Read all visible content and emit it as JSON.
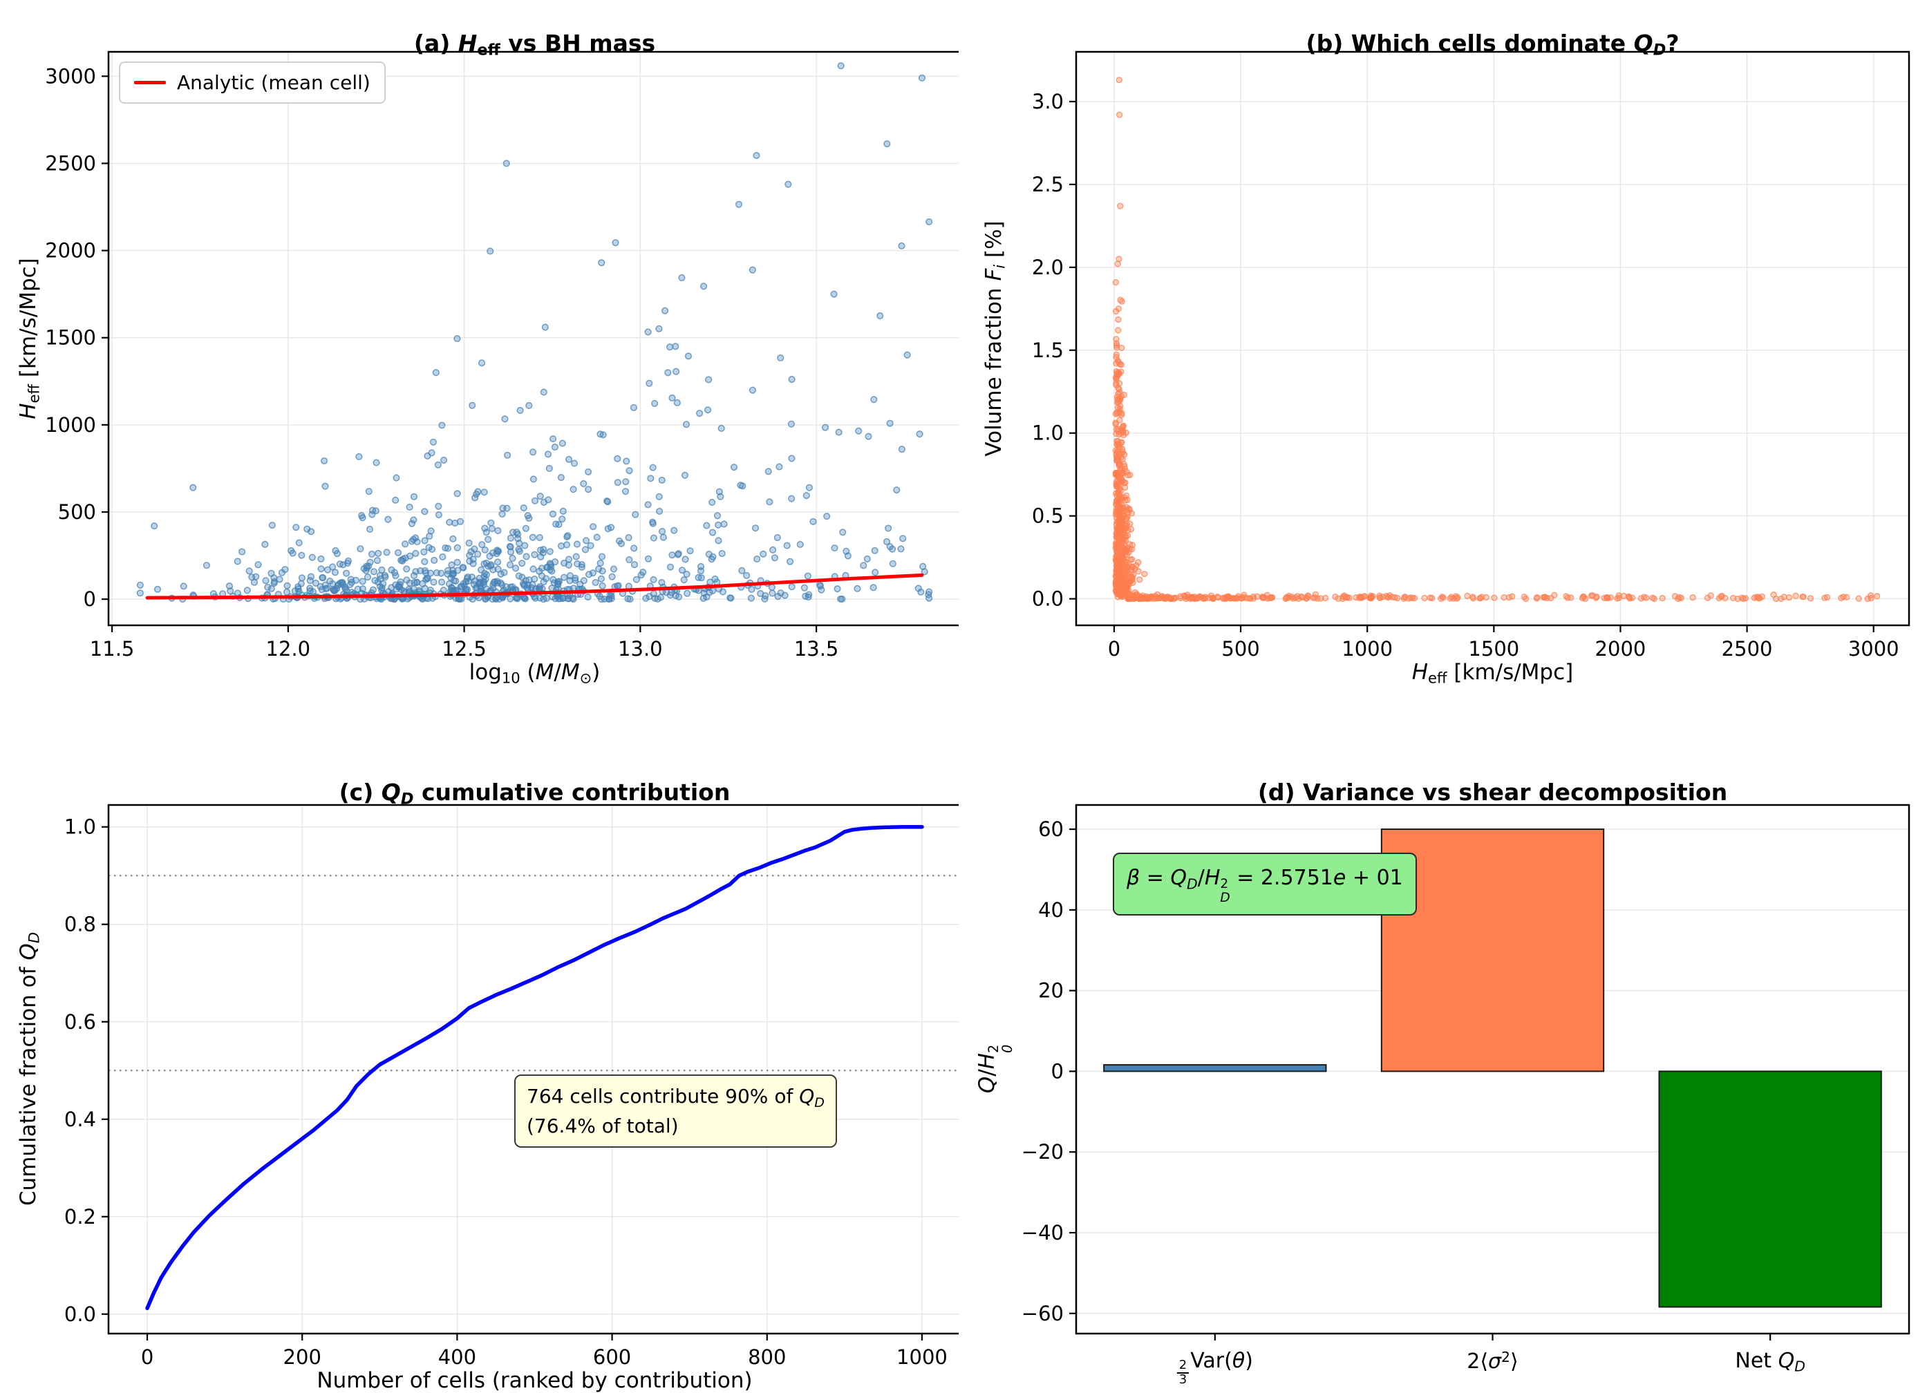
{
  "figure": {
    "background": "#ffffff"
  },
  "chart_data": [
    {
      "id": "a",
      "type": "scatter",
      "title": [
        {
          "t": "(a) ",
          "s": "n"
        },
        {
          "t": "H",
          "s": "i"
        },
        {
          "t": "eff",
          "s": "sub"
        },
        {
          "t": " vs BH mass",
          "s": "n"
        }
      ],
      "xlabel": [
        {
          "t": "log",
          "s": "n"
        },
        {
          "t": "10",
          "s": "sub"
        },
        {
          "t": " (",
          "s": "n"
        },
        {
          "t": "M",
          "s": "i"
        },
        {
          "t": "/",
          "s": "n"
        },
        {
          "t": "M",
          "s": "i"
        },
        {
          "t": "⊙",
          "s": "sub"
        },
        {
          "t": ")",
          "s": "n"
        }
      ],
      "ylabel": [
        {
          "t": "H",
          "s": "i"
        },
        {
          "t": "eff",
          "s": "sub"
        },
        {
          "t": " [km/s/Mpc]",
          "s": "n"
        }
      ],
      "xlim": [
        11.49,
        13.91
      ],
      "ylim": [
        -150,
        3140
      ],
      "xticks": [
        11.5,
        12.0,
        12.5,
        13.0,
        13.5
      ],
      "xtick_labels": [
        "11.5",
        "12.0",
        "12.5",
        "13.0",
        "13.5"
      ],
      "yticks": [
        0,
        500,
        1000,
        1500,
        2000,
        2500,
        3000
      ],
      "ytick_labels": [
        "0",
        "500",
        "1000",
        "1500",
        "2000",
        "2500",
        "3000"
      ],
      "grid": "both",
      "legend": {
        "label": "Analytic (mean cell)",
        "color": "#ff0000"
      },
      "scatter": {
        "color": "#4682b4",
        "seed": 42,
        "n": 900,
        "model": "bhmass",
        "radius": 4.3
      },
      "extra_points": [
        [
          13.8,
          2990
        ],
        [
          12.62,
          2500
        ],
        [
          13.33,
          2545
        ],
        [
          13.42,
          2380
        ],
        [
          13.28,
          2265
        ],
        [
          12.89,
          1930
        ],
        [
          13.18,
          1795
        ],
        [
          13.55,
          1750
        ],
        [
          13.07,
          1655
        ],
        [
          12.73,
          1560
        ],
        [
          12.48,
          1495
        ],
        [
          13.1,
          1450
        ],
        [
          12.55,
          1355
        ],
        [
          12.42,
          1300
        ],
        [
          13.62,
          965
        ],
        [
          11.73,
          640
        ],
        [
          11.62,
          420
        ],
        [
          13.48,
          640
        ],
        [
          13.7,
          330
        ]
      ],
      "analytic_line": {
        "color": "#ff0000",
        "points": [
          [
            11.6,
            8
          ],
          [
            11.8,
            10
          ],
          [
            12.0,
            13
          ],
          [
            12.2,
            17
          ],
          [
            12.4,
            23
          ],
          [
            12.6,
            31
          ],
          [
            12.8,
            41
          ],
          [
            13.0,
            55
          ],
          [
            13.2,
            73
          ],
          [
            13.4,
            96
          ],
          [
            13.6,
            118
          ],
          [
            13.8,
            138
          ]
        ]
      }
    },
    {
      "id": "b",
      "type": "scatter",
      "title": [
        {
          "t": "(b) Which cells dominate ",
          "s": "n"
        },
        {
          "t": "Q",
          "s": "i"
        },
        {
          "t": "D",
          "s": "isub"
        },
        {
          "t": "?",
          "s": "n"
        }
      ],
      "xlabel": [
        {
          "t": "H",
          "s": "i"
        },
        {
          "t": "eff",
          "s": "sub"
        },
        {
          "t": " [km/s/Mpc]",
          "s": "n"
        }
      ],
      "ylabel": [
        {
          "t": "Volume fraction ",
          "s": "n"
        },
        {
          "t": "F",
          "s": "i"
        },
        {
          "t": "i",
          "s": "isub"
        },
        {
          "t": " [%]",
          "s": "n"
        }
      ],
      "xlim": [
        -150,
        3140
      ],
      "ylim": [
        -0.16,
        3.3
      ],
      "xticks": [
        0,
        500,
        1000,
        1500,
        2000,
        2500,
        3000
      ],
      "xtick_labels": [
        "0",
        "500",
        "1000",
        "1500",
        "2000",
        "2500",
        "3000"
      ],
      "yticks": [
        0.0,
        0.5,
        1.0,
        1.5,
        2.0,
        2.5,
        3.0
      ],
      "ytick_labels": [
        "0.0",
        "0.5",
        "1.0",
        "1.5",
        "2.0",
        "2.5",
        "3.0"
      ],
      "grid": "both",
      "scatter": {
        "color": "#ff7f50",
        "seed": 7,
        "n": 880,
        "model": "volfrac",
        "radius": 3.9
      },
      "extra_points": [
        [
          20,
          3.13
        ],
        [
          21,
          2.92
        ],
        [
          24,
          2.37
        ],
        [
          19,
          2.05
        ],
        [
          16,
          1.62
        ],
        [
          27,
          1.37
        ],
        [
          14,
          1.2
        ],
        [
          30,
          1.12
        ],
        [
          36,
          1.04
        ],
        [
          12,
          0.93
        ],
        [
          44,
          0.7
        ],
        [
          55,
          0.52
        ],
        [
          70,
          0.3
        ],
        [
          95,
          0.22
        ],
        [
          120,
          0.15
        ],
        [
          1540,
          0.008
        ],
        [
          1620,
          0.012
        ],
        [
          1700,
          0.01
        ],
        [
          1850,
          0.005
        ],
        [
          1950,
          0.004
        ],
        [
          2240,
          0.005
        ],
        [
          2390,
          0.004
        ],
        [
          2480,
          0.006
        ],
        [
          2550,
          0.004
        ],
        [
          2990,
          0.004
        ]
      ]
    },
    {
      "id": "c",
      "type": "line",
      "title": [
        {
          "t": "(c) ",
          "s": "n"
        },
        {
          "t": "Q",
          "s": "i"
        },
        {
          "t": "D",
          "s": "isub"
        },
        {
          "t": " cumulative contribution",
          "s": "n"
        }
      ],
      "xlabel": [
        {
          "t": "Number of cells (ranked by contribution)",
          "s": "n"
        }
      ],
      "ylabel": [
        {
          "t": "Cumulative fraction of ",
          "s": "n"
        },
        {
          "t": "Q",
          "s": "i"
        },
        {
          "t": "D",
          "s": "isub"
        }
      ],
      "xlim": [
        -50,
        1050
      ],
      "ylim": [
        -0.04,
        1.045
      ],
      "xticks": [
        0,
        200,
        400,
        600,
        800,
        1000
      ],
      "xtick_labels": [
        "0",
        "200",
        "400",
        "600",
        "800",
        "1000"
      ],
      "yticks": [
        0.0,
        0.2,
        0.4,
        0.6,
        0.8,
        1.0
      ],
      "ytick_labels": [
        "0.0",
        "0.2",
        "0.4",
        "0.6",
        "0.8",
        "1.0"
      ],
      "grid": "both",
      "line_color": "#0000ff",
      "hlines": {
        "values": [
          0.5,
          0.9
        ],
        "color": "#808080",
        "style": "dotted"
      },
      "curve_points": [
        [
          0,
          0.012
        ],
        [
          8,
          0.042
        ],
        [
          18,
          0.075
        ],
        [
          30,
          0.105
        ],
        [
          45,
          0.138
        ],
        [
          60,
          0.168
        ],
        [
          80,
          0.202
        ],
        [
          100,
          0.232
        ],
        [
          125,
          0.268
        ],
        [
          150,
          0.3
        ],
        [
          175,
          0.33
        ],
        [
          200,
          0.36
        ],
        [
          215,
          0.378
        ],
        [
          230,
          0.398
        ],
        [
          245,
          0.418
        ],
        [
          258,
          0.44
        ],
        [
          270,
          0.468
        ],
        [
          285,
          0.492
        ],
        [
          300,
          0.512
        ],
        [
          320,
          0.53
        ],
        [
          340,
          0.548
        ],
        [
          360,
          0.566
        ],
        [
          380,
          0.585
        ],
        [
          400,
          0.607
        ],
        [
          415,
          0.628
        ],
        [
          430,
          0.64
        ],
        [
          450,
          0.655
        ],
        [
          470,
          0.668
        ],
        [
          490,
          0.682
        ],
        [
          510,
          0.696
        ],
        [
          530,
          0.712
        ],
        [
          550,
          0.726
        ],
        [
          570,
          0.742
        ],
        [
          590,
          0.758
        ],
        [
          610,
          0.772
        ],
        [
          630,
          0.785
        ],
        [
          650,
          0.8
        ],
        [
          665,
          0.812
        ],
        [
          680,
          0.822
        ],
        [
          695,
          0.832
        ],
        [
          710,
          0.845
        ],
        [
          725,
          0.858
        ],
        [
          740,
          0.872
        ],
        [
          752,
          0.882
        ],
        [
          764,
          0.9
        ],
        [
          775,
          0.908
        ],
        [
          790,
          0.916
        ],
        [
          805,
          0.926
        ],
        [
          820,
          0.934
        ],
        [
          835,
          0.943
        ],
        [
          850,
          0.952
        ],
        [
          862,
          0.958
        ],
        [
          872,
          0.965
        ],
        [
          882,
          0.972
        ],
        [
          890,
          0.98
        ],
        [
          900,
          0.99
        ],
        [
          910,
          0.994
        ],
        [
          920,
          0.996
        ],
        [
          935,
          0.998
        ],
        [
          950,
          0.999
        ],
        [
          975,
          1.0
        ],
        [
          1000,
          1.0
        ]
      ],
      "annotation": {
        "line1": [
          {
            "t": "764 cells contribute 90% of ",
            "s": "n"
          },
          {
            "t": "Q",
            "s": "i"
          },
          {
            "t": "D",
            "s": "isub"
          }
        ],
        "line2": [
          {
            "t": "(76.4% of total)",
            "s": "n"
          }
        ],
        "cells_90pct": 764,
        "pct_of_total": "76.4%"
      }
    },
    {
      "id": "d",
      "type": "bar",
      "title": [
        {
          "t": "(d) Variance vs shear decomposition",
          "s": "n"
        }
      ],
      "xlabel": [],
      "ylabel": [
        {
          "t": "Q",
          "s": "i"
        },
        {
          "t": "/",
          "s": "n"
        },
        {
          "t": "H",
          "s": "i"
        },
        {
          "s": "st",
          "sup": "2",
          "sub": "0"
        }
      ],
      "xlim": [
        -0.5,
        2.5
      ],
      "ylim": [
        -65,
        66
      ],
      "yticks": [
        -60,
        -40,
        -20,
        0,
        20,
        40,
        60
      ],
      "ytick_labels": [
        "−60",
        "−40",
        "−20",
        "0",
        "20",
        "40",
        "60"
      ],
      "grid": "y",
      "categories": [
        [
          {
            "s": "fr",
            "num": "2",
            "den": "3"
          },
          {
            "t": "Var(",
            "s": "n"
          },
          {
            "t": "θ",
            "s": "i"
          },
          {
            "t": ")",
            "s": "n"
          }
        ],
        [
          {
            "t": "2⟨",
            "s": "n"
          },
          {
            "t": "σ",
            "s": "i"
          },
          {
            "t": "2",
            "s": "sup"
          },
          {
            "t": "⟩",
            "s": "n"
          }
        ],
        [
          {
            "t": "Net ",
            "s": "n"
          },
          {
            "t": "Q",
            "s": "i"
          },
          {
            "t": "D",
            "s": "isub"
          }
        ]
      ],
      "values": [
        1.6,
        60.0,
        -58.4
      ],
      "bar_colors": [
        "#4682b4",
        "#ff7f50",
        "#008000"
      ],
      "annotation": {
        "segs": [
          {
            "t": "β",
            "s": "i"
          },
          {
            "t": " = ",
            "s": "n"
          },
          {
            "t": "Q",
            "s": "i"
          },
          {
            "t": "D",
            "s": "isub"
          },
          {
            "t": "/",
            "s": "n"
          },
          {
            "t": "H",
            "s": "i"
          },
          {
            "s": "st",
            "sup": "2",
            "sub": "D"
          },
          {
            "t": " = 2.5751",
            "s": "n"
          },
          {
            "t": "e",
            "s": "i"
          },
          {
            "t": " + 01",
            "s": "n"
          }
        ],
        "beta_value": "2.5751e+01"
      }
    }
  ],
  "style": {
    "grid_color": "#e7e7e7",
    "spine_color": "#000000",
    "tick_label_color": "#000000"
  }
}
